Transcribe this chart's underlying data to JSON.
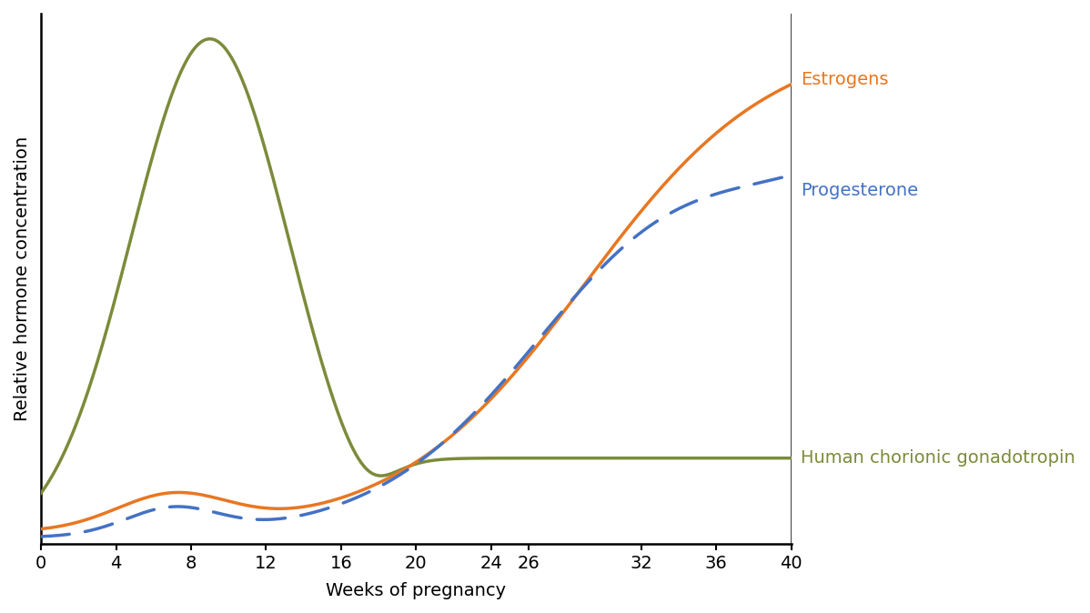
{
  "title": "",
  "xlabel": "Weeks of pregnancy",
  "ylabel": "Relative hormone concentration",
  "x_ticks": [
    0,
    4,
    8,
    12,
    16,
    20,
    24,
    26,
    32,
    36,
    40
  ],
  "xlim": [
    0,
    40
  ],
  "ylim": [
    0,
    1.05
  ],
  "background_color": "#ffffff",
  "legend": [
    {
      "label": "Estrogens",
      "color": "#E87722",
      "linestyle": "solid"
    },
    {
      "label": "Progesterone",
      "color": "#4472C4",
      "linestyle": "dashed"
    },
    {
      "label": "Human chorionic gonadotropin",
      "color": "#7B8B3A",
      "linestyle": "solid"
    }
  ],
  "line_width": 2.5,
  "label_fontsize": 14,
  "tick_fontsize": 14,
  "legend_fontsize": 14,
  "spine_linewidth": 1.8
}
